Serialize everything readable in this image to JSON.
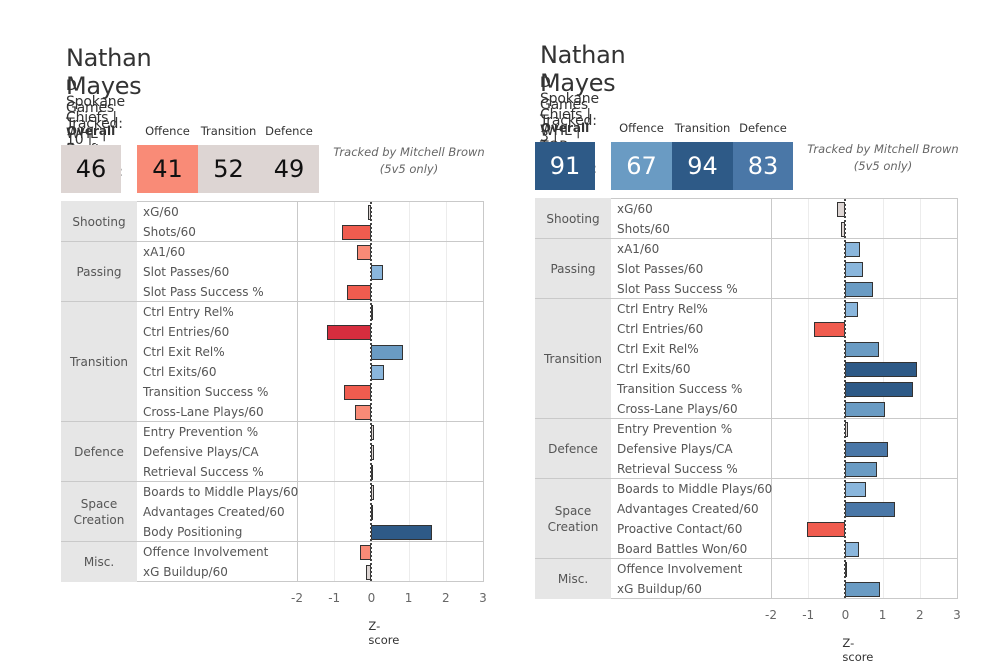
{
  "panels": [
    {
      "name": "Nathan Mayes",
      "subtitle": "D | Spokane Chiefs | WHL | Draft Year",
      "tracked": "Games Tracked: 10 | Minutes Tracked: 148.9",
      "labels": {
        "overall": "Overall",
        "offence": "Offence",
        "transition": "Transition",
        "defence": "Defence"
      },
      "scores": {
        "overall": "46",
        "offence": "41",
        "transition": "52",
        "defence": "49"
      },
      "score_colors": {
        "overall": "#ddd5d3",
        "offence": "#f98b77",
        "transition": "#ddd5d3",
        "defence": "#ddd5d3"
      },
      "score_text_colors": {
        "overall": "#111111",
        "offence": "#111111",
        "transition": "#111111",
        "defence": "#111111"
      },
      "credit_line1": "Tracked by Mitchell Brown",
      "credit_line2": "(5v5 only)",
      "x_label": "Z-score",
      "ticks": [
        "-2",
        "-1",
        "0",
        "1",
        "2",
        "3"
      ]
    },
    {
      "name": "Nathan Mayes",
      "subtitle": "D | Spokane Chiefs | WHL | TOR (2024, 225th)",
      "tracked": "Games Tracked: 3 | Minutes Tracked: 58.6",
      "labels": {
        "overall": "Overall",
        "offence": "Offence",
        "transition": "Transition",
        "defence": "Defence"
      },
      "scores": {
        "overall": "91",
        "offence": "67",
        "transition": "94",
        "defence": "83"
      },
      "score_colors": {
        "overall": "#2e5a87",
        "offence": "#6a9bc3",
        "transition": "#2e5a87",
        "defence": "#4a77a7"
      },
      "score_text_colors": {
        "overall": "#ffffff",
        "offence": "#ffffff",
        "transition": "#ffffff",
        "defence": "#ffffff"
      },
      "credit_line1": "Tracked by Mitchell Brown",
      "credit_line2": "(5v5 only)",
      "x_label": "Z-score",
      "ticks": [
        "-2",
        "-1",
        "0",
        "1",
        "2",
        "3"
      ]
    }
  ],
  "chart_data": [
    {
      "type": "bar",
      "orientation": "horizontal",
      "title": "Nathan Mayes — D | Spokane Chiefs | WHL | Draft Year",
      "xlabel": "Z-score",
      "ylabel": "",
      "xlim": [
        -2,
        3
      ],
      "grid": true,
      "groups": [
        {
          "name": "Shooting",
          "metrics": [
            {
              "label": "xG/60",
              "value": -0.1,
              "color": "#ddd5d3"
            },
            {
              "label": "Shots/60",
              "value": -0.8,
              "color": "#f05c4f"
            }
          ]
        },
        {
          "name": "Passing",
          "metrics": [
            {
              "label": "xA1/60",
              "value": -0.4,
              "color": "#f98b77"
            },
            {
              "label": "Slot Passes/60",
              "value": 0.3,
              "color": "#8ab6dc"
            },
            {
              "label": "Slot Pass Success %",
              "value": -0.65,
              "color": "#f05c4f"
            }
          ]
        },
        {
          "name": "Transition",
          "metrics": [
            {
              "label": "Ctrl Entry Rel%",
              "value": 0.03,
              "color": "#ddd5d3"
            },
            {
              "label": "Ctrl Entries/60",
              "value": -1.2,
              "color": "#d62d3e"
            },
            {
              "label": "Ctrl Exit Rel%",
              "value": 0.86,
              "color": "#6a9bc3"
            },
            {
              "label": "Ctrl Exits/60",
              "value": 0.33,
              "color": "#8ab6dc"
            },
            {
              "label": "Transition Success %",
              "value": -0.75,
              "color": "#f05c4f"
            },
            {
              "label": "Cross-Lane Plays/60",
              "value": -0.43,
              "color": "#f98b77"
            }
          ]
        },
        {
          "name": "Defence",
          "metrics": [
            {
              "label": "Entry Prevention %",
              "value": 0.08,
              "color": "#ddd5d3"
            },
            {
              "label": "Defensive Plays/CA",
              "value": 0.07,
              "color": "#ddd5d3"
            },
            {
              "label": "Retrieval Success %",
              "value": 0.0,
              "color": "#ddd5d3"
            }
          ]
        },
        {
          "name": "Space Creation",
          "metrics": [
            {
              "label": "Boards to Middle Plays/60",
              "value": 0.06,
              "color": "#ddd5d3"
            },
            {
              "label": "Advantages Created/60",
              "value": 0.02,
              "color": "#ddd5d3"
            },
            {
              "label": "Body Positioning",
              "value": 1.63,
              "color": "#2e5a87"
            }
          ]
        },
        {
          "name": "Misc.",
          "metrics": [
            {
              "label": "Offence Involvement",
              "value": -0.3,
              "color": "#f98b77"
            },
            {
              "label": "xG Buildup/60",
              "value": -0.14,
              "color": "#ddd5d3"
            }
          ]
        }
      ]
    },
    {
      "type": "bar",
      "orientation": "horizontal",
      "title": "Nathan Mayes — D | Spokane Chiefs | WHL | TOR (2024, 225th)",
      "xlabel": "Z-score",
      "ylabel": "",
      "xlim": [
        -2,
        3
      ],
      "grid": true,
      "groups": [
        {
          "name": "Shooting",
          "metrics": [
            {
              "label": "xG/60",
              "value": -0.22,
              "color": "#ddd5d3"
            },
            {
              "label": "Shots/60",
              "value": -0.12,
              "color": "#ddd5d3"
            }
          ]
        },
        {
          "name": "Passing",
          "metrics": [
            {
              "label": "xA1/60",
              "value": 0.4,
              "color": "#8ab6dc"
            },
            {
              "label": "Slot Passes/60",
              "value": 0.48,
              "color": "#8ab6dc"
            },
            {
              "label": "Slot Pass Success %",
              "value": 0.75,
              "color": "#6a9bc3"
            }
          ]
        },
        {
          "name": "Transition",
          "metrics": [
            {
              "label": "Ctrl Entry Rel%",
              "value": 0.33,
              "color": "#8ab6dc"
            },
            {
              "label": "Ctrl Entries/60",
              "value": -0.85,
              "color": "#f05c4f"
            },
            {
              "label": "Ctrl Exit Rel%",
              "value": 0.9,
              "color": "#6a9bc3"
            },
            {
              "label": "Ctrl Exits/60",
              "value": 1.92,
              "color": "#2e5a87"
            },
            {
              "label": "Transition Success %",
              "value": 1.81,
              "color": "#2e5a87"
            },
            {
              "label": "Cross-Lane Plays/60",
              "value": 1.07,
              "color": "#6a9bc3"
            }
          ]
        },
        {
          "name": "Defence",
          "metrics": [
            {
              "label": "Entry Prevention %",
              "value": 0.08,
              "color": "#ddd5d3"
            },
            {
              "label": "Defensive Plays/CA",
              "value": 1.15,
              "color": "#4a77a7"
            },
            {
              "label": "Retrieval Success %",
              "value": 0.85,
              "color": "#6a9bc3"
            }
          ]
        },
        {
          "name": "Space Creation",
          "metrics": [
            {
              "label": "Boards to Middle Plays/60",
              "value": 0.56,
              "color": "#8ab6dc"
            },
            {
              "label": "Advantages Created/60",
              "value": 1.33,
              "color": "#4a77a7"
            },
            {
              "label": "Proactive Contact/60",
              "value": -1.02,
              "color": "#f05c4f"
            },
            {
              "label": "Board Battles Won/60",
              "value": 0.36,
              "color": "#8ab6dc"
            }
          ]
        },
        {
          "name": "Misc.",
          "metrics": [
            {
              "label": "Offence Involvement",
              "value": 0.0,
              "color": "#ddd5d3"
            },
            {
              "label": "xG Buildup/60",
              "value": 0.93,
              "color": "#6a9bc3"
            }
          ]
        }
      ]
    }
  ]
}
